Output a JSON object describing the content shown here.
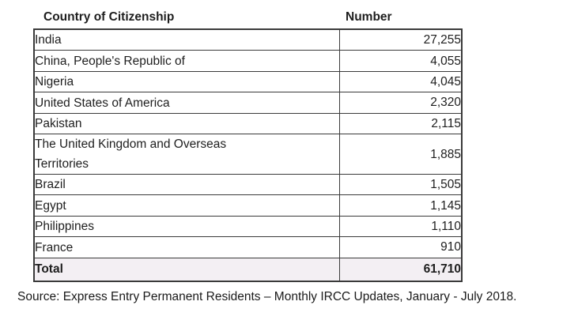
{
  "table": {
    "headers": {
      "country": "Country of Citizenship",
      "number": "Number"
    },
    "rows": [
      {
        "country": "India",
        "number": "27,255"
      },
      {
        "country": "China, People's Republic of",
        "number": "4,055"
      },
      {
        "country": "Nigeria",
        "number": "4,045"
      },
      {
        "country": "United States of America",
        "number": "2,320"
      },
      {
        "country": "Pakistan",
        "number": "2,115"
      },
      {
        "country": "The United Kingdom and Overseas Territories",
        "number": "1,885"
      },
      {
        "country": "Brazil",
        "number": "1,505"
      },
      {
        "country": "Egypt",
        "number": "1,145"
      },
      {
        "country": "Philippines",
        "number": "1,110"
      },
      {
        "country": "France",
        "number": "910"
      }
    ],
    "total": {
      "label": "Total",
      "number": "61,710"
    }
  },
  "source_note": "Source: Express Entry Permanent Residents – Monthly IRCC Updates, January - July 2018.",
  "colors": {
    "border": "#3a3a3a",
    "total_row_bg": "#f3eff3",
    "text": "#1e1e1e",
    "background": "#ffffff"
  },
  "chart_data": {
    "type": "table",
    "title": "",
    "columns": [
      "Country of Citizenship",
      "Number"
    ],
    "rows": [
      [
        "India",
        27255
      ],
      [
        "China, People's Republic of",
        4055
      ],
      [
        "Nigeria",
        4045
      ],
      [
        "United States of America",
        2320
      ],
      [
        "Pakistan",
        2115
      ],
      [
        "The United Kingdom and Overseas Territories",
        1885
      ],
      [
        "Brazil",
        1505
      ],
      [
        "Egypt",
        1145
      ],
      [
        "Philippines",
        1110
      ],
      [
        "France",
        910
      ]
    ],
    "total_row": [
      "Total",
      61710
    ],
    "source": "Source: Express Entry Permanent Residents – Monthly IRCC Updates, January - July 2018."
  }
}
